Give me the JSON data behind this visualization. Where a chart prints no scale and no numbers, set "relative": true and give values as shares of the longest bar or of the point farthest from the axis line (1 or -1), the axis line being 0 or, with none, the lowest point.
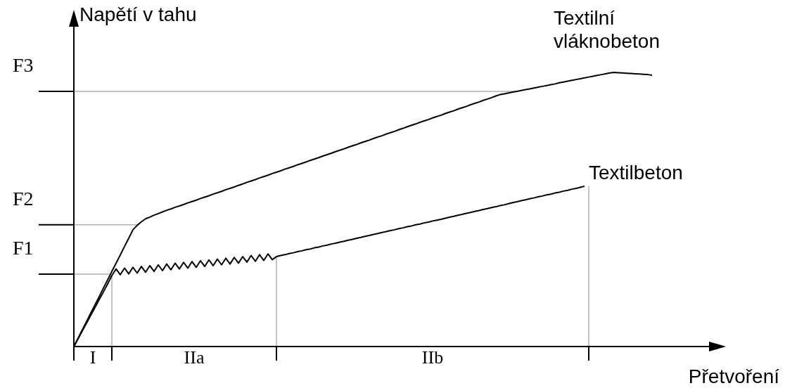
{
  "chart_data": {
    "type": "line",
    "relative": true,
    "xlabel": "Přetvoření",
    "ylabel": "Napětí v tahu",
    "line_style": "solid",
    "categories": [
      null,
      null,
      null,
      null,
      null,
      null,
      null,
      null,
      null,
      null,
      null,
      null,
      null,
      null,
      null,
      null,
      null,
      null,
      null,
      null,
      null,
      null,
      null,
      null,
      null,
      null,
      null,
      null,
      null,
      null,
      null,
      null,
      null,
      null,
      null,
      null,
      null,
      null,
      null,
      null,
      null,
      null,
      null,
      null,
      null,
      null,
      null,
      null,
      null,
      null,
      null,
      null,
      null,
      null,
      null,
      null,
      null,
      null,
      null,
      null,
      null,
      null,
      null,
      null,
      null,
      null,
      null,
      null,
      null,
      null,
      null,
      null,
      null,
      null,
      null,
      null,
      null,
      null,
      null,
      null,
      null,
      null,
      null,
      null,
      null,
      null,
      null,
      null,
      null,
      null,
      null,
      null,
      null,
      null,
      null,
      null,
      null,
      null,
      null,
      null,
      null,
      null,
      null,
      null,
      null,
      null,
      null,
      null,
      null,
      null,
      null,
      null,
      null,
      null,
      null,
      null,
      null,
      null,
      null,
      null,
      null,
      null,
      null,
      null,
      null,
      null,
      null,
      null,
      null,
      null,
      null,
      null,
      null,
      null,
      null,
      null,
      null,
      null
    ],
    "series": [
      {
        "name": "Textilní vláknobeton",
        "color": "#000000",
        "values": [
          0,
          0.03,
          0.061,
          0.091,
          0.122,
          0.152,
          0.182,
          0.213,
          0.243,
          0.274,
          0.304,
          0.334,
          0.365,
          0.395,
          0.426,
          0.442,
          0.455,
          0.466,
          0.472,
          0.479,
          0.485,
          0.491,
          0.497,
          0.502,
          0.508,
          0.513,
          0.518,
          0.524,
          0.529,
          0.534,
          0.54,
          0.545,
          0.55,
          0.556,
          0.561,
          0.566,
          0.572,
          0.577,
          0.582,
          0.588,
          0.593,
          0.599,
          0.604,
          0.609,
          0.615,
          0.62,
          0.625,
          0.631,
          0.636,
          0.641,
          0.647,
          0.652,
          0.657,
          0.663,
          0.668,
          0.673,
          0.679,
          0.684,
          0.689,
          0.695,
          0.7,
          0.705,
          0.711,
          0.716,
          0.721,
          0.727,
          0.732,
          0.737,
          0.743,
          0.748,
          0.753,
          0.759,
          0.764,
          0.769,
          0.775,
          0.78,
          0.785,
          0.791,
          0.796,
          0.802,
          0.807,
          0.812,
          0.818,
          0.823,
          0.828,
          0.834,
          0.839,
          0.844,
          0.85,
          0.855,
          0.86,
          0.866,
          0.871,
          0.876,
          0.882,
          0.887,
          0.892,
          0.898,
          0.903,
          0.908,
          0.914,
          0.919,
          0.922,
          0.925,
          0.928,
          0.931,
          0.934,
          0.937,
          0.94,
          0.943,
          0.946,
          0.949,
          0.952,
          0.955,
          0.958,
          0.962,
          0.965,
          0.968,
          0.971,
          0.974,
          0.977,
          0.98,
          0.983,
          0.986,
          0.989,
          0.992,
          0.995,
          0.998,
          1,
          0.999,
          0.998,
          0.997,
          0.996,
          0.995,
          0.994,
          0.993,
          0.992,
          0.99
        ]
      },
      {
        "name": "Textilbeton",
        "color": "#000000",
        "values": [
          0,
          0.028,
          0.057,
          0.085,
          0.114,
          0.142,
          0.171,
          0.199,
          0.228,
          0.259,
          0.283,
          0.262,
          0.286,
          0.265,
          0.289,
          0.268,
          0.292,
          0.271,
          0.295,
          0.274,
          0.298,
          0.277,
          0.301,
          0.28,
          0.304,
          0.283,
          0.307,
          0.286,
          0.31,
          0.289,
          0.313,
          0.292,
          0.316,
          0.295,
          0.319,
          0.298,
          0.322,
          0.301,
          0.325,
          0.304,
          0.328,
          0.308,
          0.332,
          0.311,
          0.335,
          0.314,
          0.338,
          0.317,
          0.328,
          0.332,
          0.335,
          0.339,
          0.342,
          0.346,
          0.349,
          0.353,
          0.356,
          0.36,
          0.363,
          0.367,
          0.37,
          0.374,
          0.377,
          0.381,
          0.384,
          0.388,
          0.391,
          0.395,
          0.398,
          0.402,
          0.405,
          0.409,
          0.412,
          0.416,
          0.419,
          0.423,
          0.426,
          0.43,
          0.433,
          0.437,
          0.44,
          0.444,
          0.447,
          0.451,
          0.454,
          0.458,
          0.461,
          0.464,
          0.468,
          0.472,
          0.475,
          0.479,
          0.482,
          0.486,
          0.489,
          0.493,
          0.496,
          0.5,
          0.503,
          0.507,
          0.51,
          0.514,
          0.517,
          0.521,
          0.525,
          0.528,
          0.532,
          0.535,
          0.539,
          0.542,
          0.546,
          0.549,
          0.553,
          0.556,
          0.56,
          0.563,
          0.567,
          0.57,
          0.574,
          0.577,
          0.581,
          0.585,
          null,
          null,
          null,
          null,
          null,
          null,
          null,
          null,
          null,
          null,
          null,
          null,
          null,
          null,
          null,
          null
        ]
      }
    ],
    "ref_lines": [
      {
        "axis": "y",
        "value": 0.264,
        "label": "F1",
        "color": "#b0b0b0"
      },
      {
        "axis": "y",
        "value": 0.444,
        "label": "F2",
        "color": "#b0b0b0"
      },
      {
        "axis": "y",
        "value": 0.931,
        "label": "F3",
        "color": "#b0b0b0"
      }
    ],
    "annotations": [
      "I",
      "IIa",
      "IIb"
    ]
  }
}
